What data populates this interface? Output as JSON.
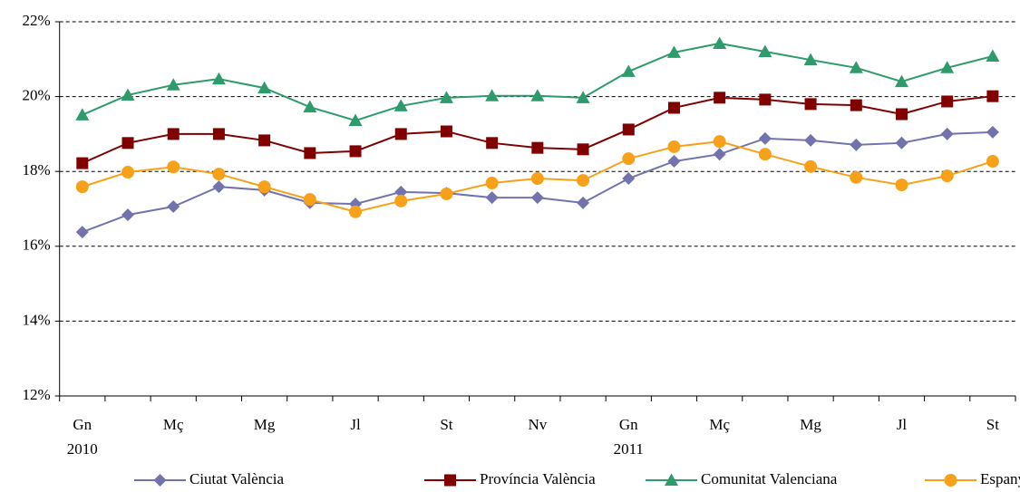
{
  "chart_data": {
    "type": "line",
    "categories": [
      "Gn",
      null,
      "Mç",
      null,
      "Mg",
      null,
      "Jl",
      null,
      "St",
      null,
      "Nv",
      null,
      "Gn",
      null,
      "Mç",
      null,
      "Mg",
      null,
      "Jl",
      null,
      "St"
    ],
    "x_group_labels": [
      "2010",
      null,
      null,
      null,
      null,
      null,
      null,
      null,
      null,
      null,
      null,
      null,
      "2011",
      null,
      null,
      null,
      null,
      null,
      null,
      null,
      null
    ],
    "ylim": [
      12,
      22
    ],
    "yticks": [
      {
        "value": 12,
        "label": "12%"
      },
      {
        "value": 14,
        "label": "14%"
      },
      {
        "value": 16,
        "label": "16%"
      },
      {
        "value": 18,
        "label": "18%"
      },
      {
        "value": 20,
        "label": "20%"
      },
      {
        "value": 22,
        "label": "22%"
      }
    ],
    "grid": true,
    "legend": "bottom",
    "series": [
      {
        "name": "Ciutat València",
        "color": "#7272ad",
        "marker": "diamond",
        "values": [
          16.38,
          16.84,
          17.06,
          17.59,
          17.5,
          17.16,
          17.13,
          17.45,
          17.42,
          17.3,
          17.3,
          17.16,
          17.81,
          18.27,
          18.46,
          18.88,
          18.83,
          18.71,
          18.76,
          19.0,
          19.05
        ]
      },
      {
        "name": "Província València",
        "color": "#800000",
        "marker": "square",
        "values": [
          18.22,
          18.76,
          19.0,
          19.0,
          18.83,
          18.49,
          18.54,
          19.0,
          19.07,
          18.76,
          18.63,
          18.59,
          19.12,
          19.7,
          19.97,
          19.92,
          19.8,
          19.77,
          19.53,
          19.87,
          20.01
        ]
      },
      {
        "name": "Comunitat Valenciana",
        "color": "#2e9b6b",
        "marker": "triangle",
        "values": [
          19.51,
          20.04,
          20.31,
          20.47,
          20.23,
          19.72,
          19.36,
          19.75,
          19.97,
          20.02,
          20.02,
          19.97,
          20.67,
          21.18,
          21.42,
          21.2,
          20.98,
          20.77,
          20.4,
          20.77,
          21.08
        ]
      },
      {
        "name": "Espanya",
        "color": "#f7a11a",
        "marker": "circle",
        "values": [
          17.59,
          17.98,
          18.12,
          17.93,
          17.59,
          17.25,
          16.92,
          17.21,
          17.4,
          17.69,
          17.81,
          17.76,
          18.34,
          18.66,
          18.8,
          18.46,
          18.13,
          17.84,
          17.64,
          17.88,
          18.27
        ]
      }
    ]
  }
}
